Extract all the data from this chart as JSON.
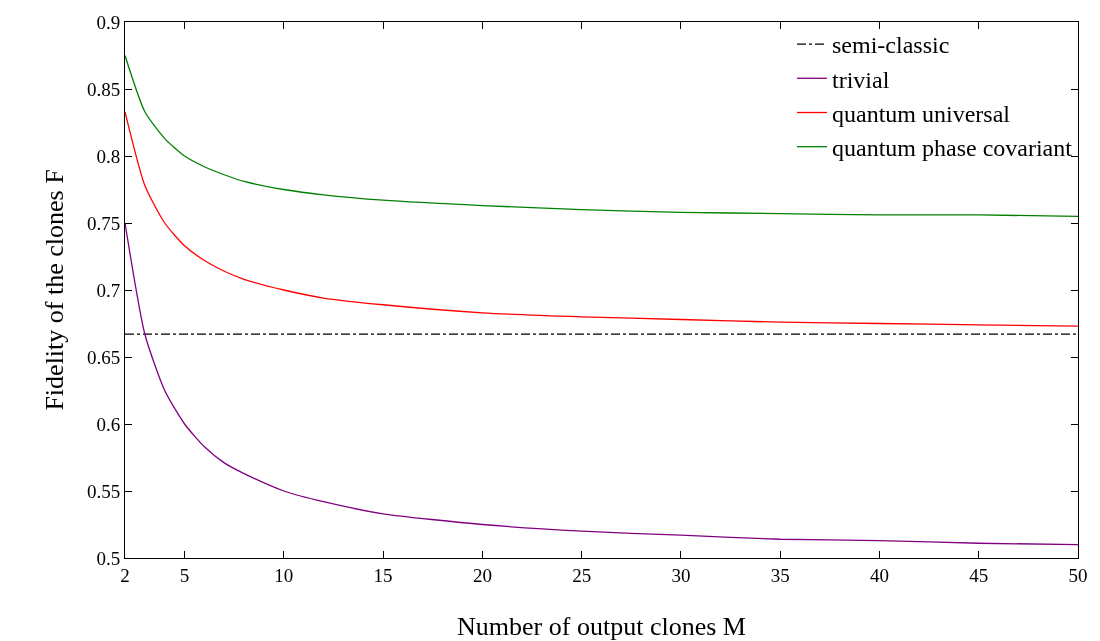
{
  "chart_data": {
    "type": "line",
    "xlabel": "Number of output clones M",
    "ylabel": "Fidelity of the clones F",
    "x": [
      2,
      3,
      4,
      5,
      6,
      7,
      8,
      10,
      12,
      15,
      20,
      25,
      30,
      35,
      40,
      45,
      50
    ],
    "series": [
      {
        "name": "semi-classic",
        "color": "#000000",
        "line_style": "dashdot",
        "x": [
          2,
          50
        ],
        "values": [
          0.667,
          0.667
        ]
      },
      {
        "name": "trivial",
        "color": "#800080",
        "values": [
          0.75,
          0.667,
          0.625,
          0.6,
          0.583,
          0.571,
          0.563,
          0.55,
          0.542,
          0.533,
          0.525,
          0.52,
          0.517,
          0.514,
          0.513,
          0.511,
          0.51
        ]
      },
      {
        "name": "quantum universal",
        "color": "#ff0000",
        "values": [
          0.833,
          0.778,
          0.75,
          0.733,
          0.722,
          0.714,
          0.708,
          0.7,
          0.694,
          0.689,
          0.683,
          0.68,
          0.678,
          0.676,
          0.675,
          0.674,
          0.673
        ]
      },
      {
        "name": "quantum phase covariant",
        "color": "#008000",
        "values": [
          0.875,
          0.833,
          0.813,
          0.8,
          0.792,
          0.786,
          0.781,
          0.775,
          0.771,
          0.767,
          0.763,
          0.76,
          0.758,
          0.757,
          0.756,
          0.756,
          0.755
        ]
      }
    ],
    "xlim": [
      2,
      50
    ],
    "xticks": [
      2,
      5,
      10,
      15,
      20,
      25,
      30,
      35,
      40,
      45,
      50
    ],
    "ylim": [
      0.5,
      0.9
    ],
    "yticks": [
      0.5,
      0.55,
      0.6,
      0.65,
      0.7,
      0.75,
      0.8,
      0.85,
      0.9
    ],
    "grid": false,
    "legend": "top right",
    "marker": "none",
    "line_style": "solid"
  }
}
